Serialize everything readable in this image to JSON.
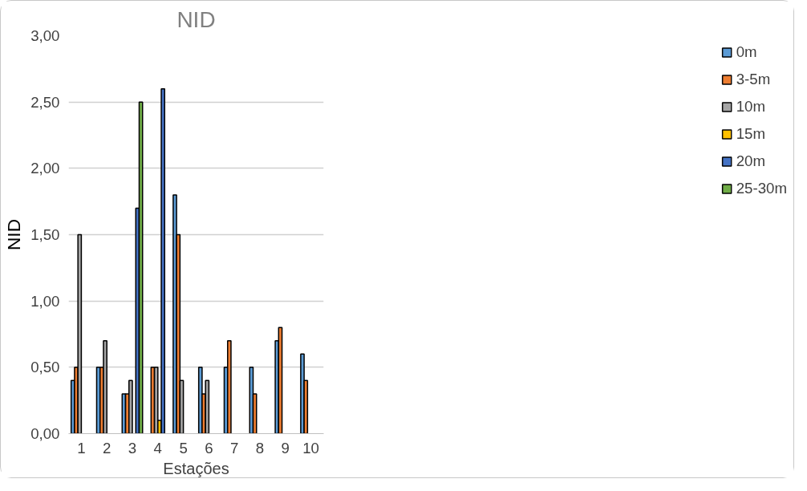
{
  "chart_data": {
    "type": "bar",
    "title": "NID",
    "xlabel": "Estações",
    "ylabel": "NID",
    "categories": [
      "1",
      "2",
      "3",
      "4",
      "5",
      "6",
      "7",
      "8",
      "9",
      "10"
    ],
    "series": [
      {
        "name": "0m",
        "color": "#5b9bd5",
        "values": [
          0.4,
          0.5,
          0.3,
          null,
          1.8,
          0.5,
          0.5,
          0.5,
          0.7,
          0.6
        ]
      },
      {
        "name": "3-5m",
        "color": "#ed7d31",
        "values": [
          0.5,
          0.5,
          0.3,
          0.5,
          1.5,
          0.3,
          0.7,
          0.3,
          0.8,
          0.4
        ]
      },
      {
        "name": "10m",
        "color": "#a5a5a5",
        "values": [
          1.5,
          0.7,
          0.4,
          0.5,
          0.4,
          0.4,
          null,
          null,
          null,
          null
        ]
      },
      {
        "name": "15m",
        "color": "#ffc000",
        "values": [
          null,
          null,
          null,
          0.1,
          null,
          null,
          null,
          null,
          null,
          null
        ]
      },
      {
        "name": "20m",
        "color": "#4472c4",
        "values": [
          null,
          null,
          1.7,
          2.6,
          null,
          null,
          null,
          null,
          null,
          null
        ]
      },
      {
        "name": "25-30m",
        "color": "#70ad47",
        "values": [
          null,
          null,
          2.5,
          null,
          null,
          null,
          null,
          null,
          null,
          null
        ]
      }
    ],
    "ylim": [
      0,
      3
    ],
    "yticks": [
      {
        "value": 0,
        "label": "0,00"
      },
      {
        "value": 0.5,
        "label": "0,50"
      },
      {
        "value": 1,
        "label": "1,00"
      },
      {
        "value": 1.5,
        "label": "1,50"
      },
      {
        "value": 2,
        "label": "2,00"
      },
      {
        "value": 2.5,
        "label": "2,50"
      },
      {
        "value": 3,
        "label": "3,00"
      }
    ],
    "grid": "y",
    "legend": "right"
  }
}
